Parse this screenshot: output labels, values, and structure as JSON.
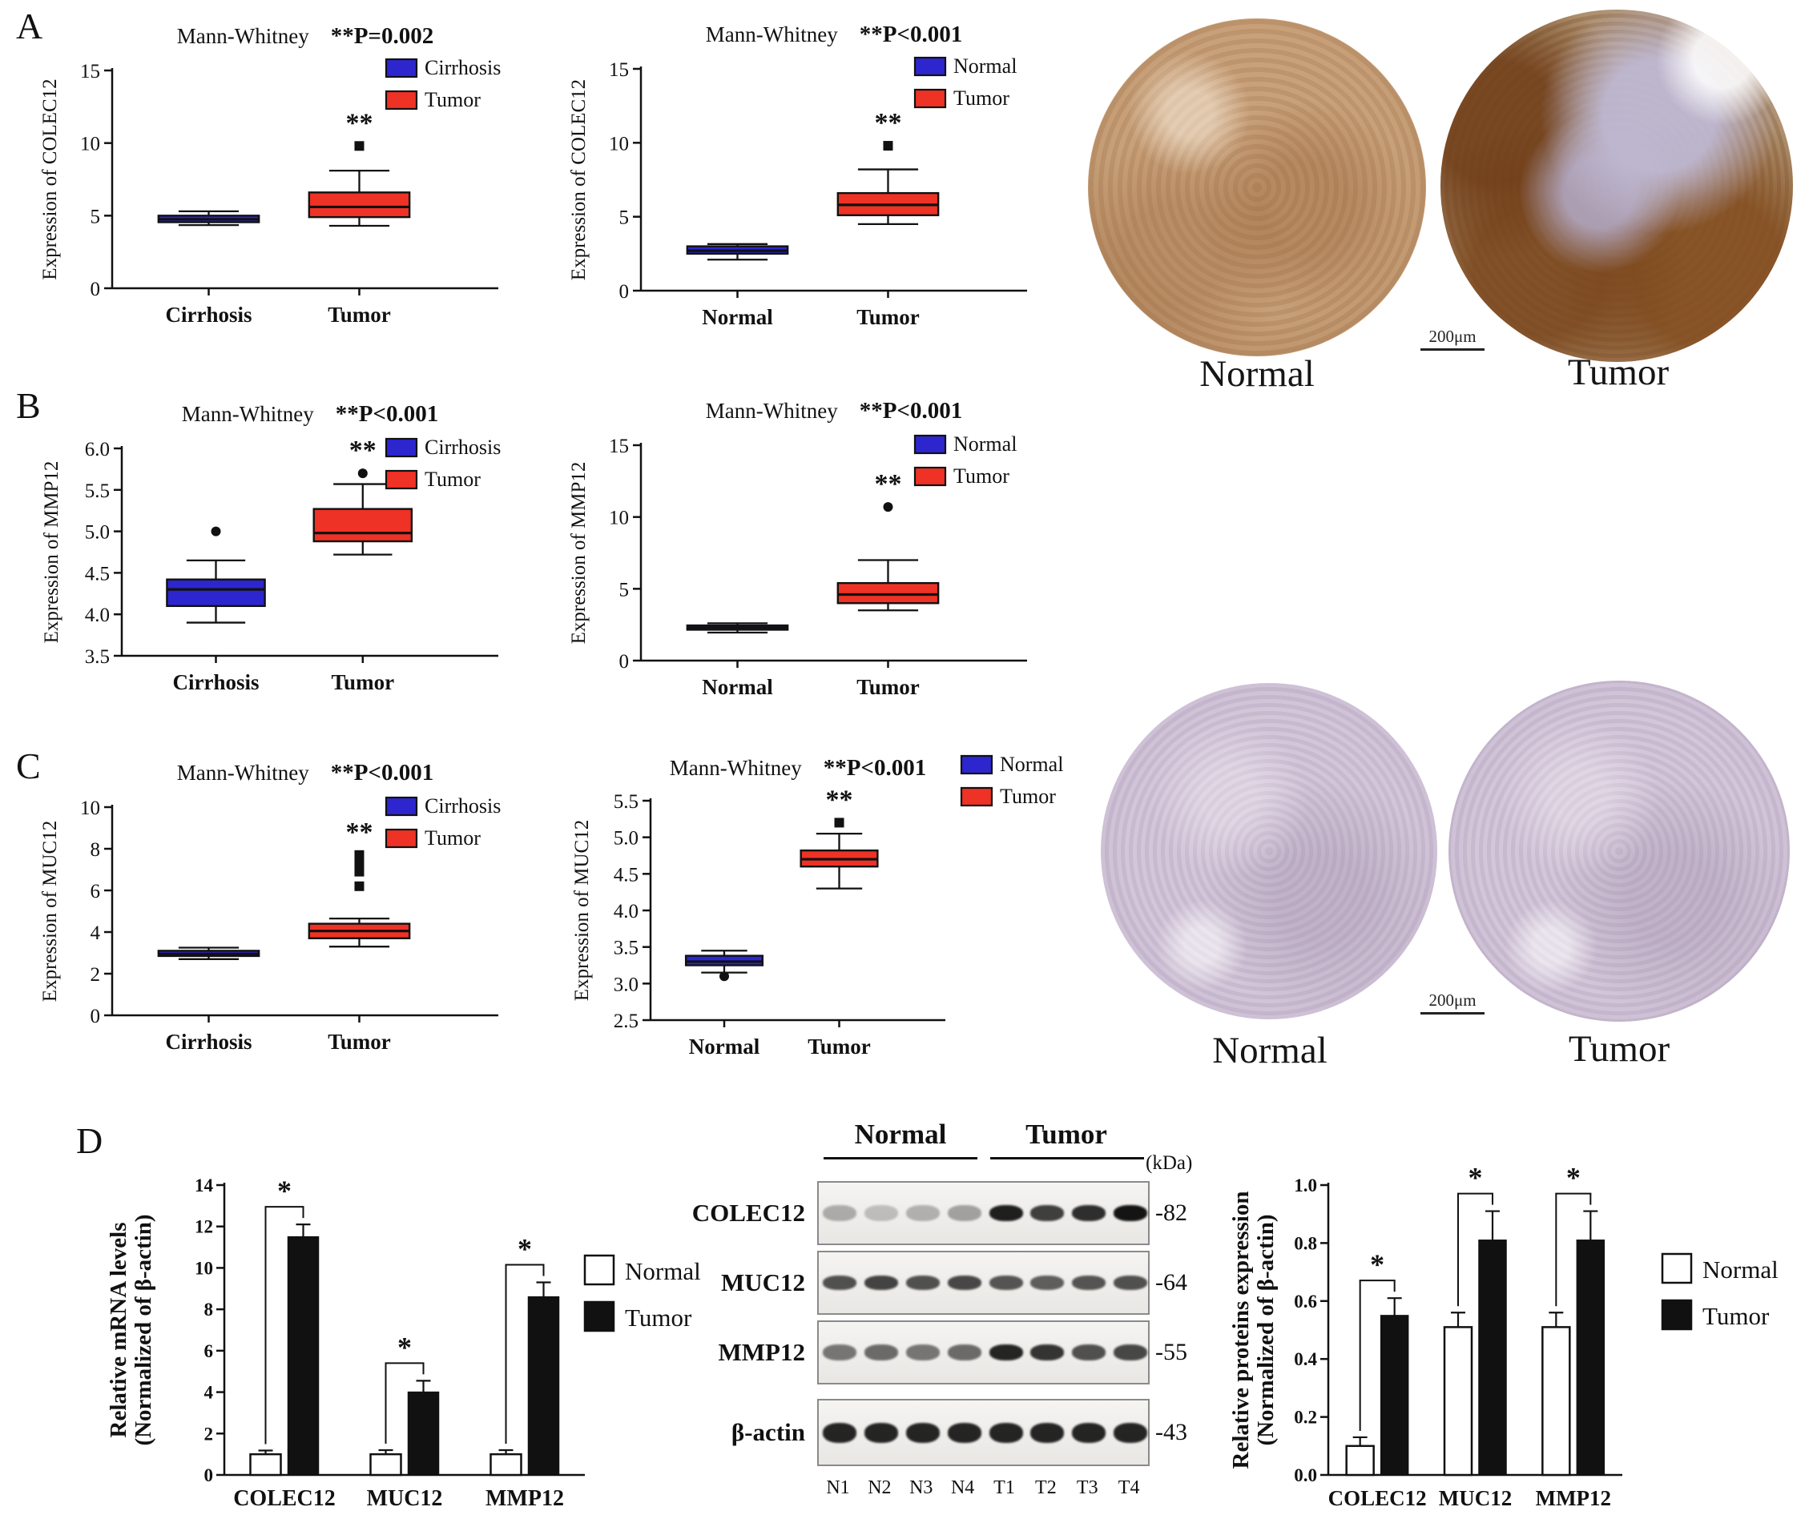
{
  "figure": {
    "panel_labels": {
      "A": "A",
      "B": "B",
      "C": "C",
      "D": "D"
    }
  },
  "ihc": {
    "panelA": {
      "normal_label": "Normal",
      "tumor_label": "Tumor",
      "scale_bar": "200μm"
    },
    "panelC": {
      "normal_label": "Normal",
      "tumor_label": "Tumor",
      "scale_bar": "200μm"
    }
  },
  "western_blot": {
    "group_headers": [
      "Normal",
      "Tumor"
    ],
    "kda_label": "(kDa)",
    "rows": [
      {
        "protein": "COLEC12",
        "kda": "-82",
        "intensities": [
          0.3,
          0.22,
          0.28,
          0.35,
          0.95,
          0.8,
          0.88,
          1.0
        ]
      },
      {
        "protein": "MUC12",
        "kda": "-64",
        "intensities": [
          0.72,
          0.78,
          0.72,
          0.76,
          0.7,
          0.66,
          0.7,
          0.72
        ]
      },
      {
        "protein": "MMP12",
        "kda": "-55",
        "intensities": [
          0.55,
          0.6,
          0.55,
          0.6,
          0.92,
          0.85,
          0.72,
          0.76
        ]
      },
      {
        "protein": "β-actin",
        "kda": "-43",
        "intensities": [
          0.92,
          0.92,
          0.92,
          0.92,
          0.92,
          0.92,
          0.92,
          0.92
        ]
      }
    ],
    "lanes": [
      "N1",
      "N2",
      "N3",
      "N4",
      "T1",
      "T2",
      "T3",
      "T4"
    ]
  },
  "chart_data": [
    {
      "id": "A1",
      "type": "box",
      "title": "Mann-Whitney",
      "p_label": "**P=0.002",
      "ylabel": "Expression of COLEC12",
      "ylim": [
        0,
        15
      ],
      "yticks": [
        0,
        5,
        10,
        15
      ],
      "ytick_labels": [
        "0",
        "5",
        "10",
        "15"
      ],
      "categories": [
        "Cirrhosis",
        "Tumor"
      ],
      "outlier_shape": "square",
      "boxes": [
        {
          "category": "Cirrhosis",
          "color": "#2d26cf",
          "whislo": 4.35,
          "q1": 4.55,
          "med": 4.75,
          "q3": 5.0,
          "whishi": 5.3,
          "outliers": []
        },
        {
          "category": "Tumor",
          "color": "#ee3225",
          "whislo": 4.3,
          "q1": 4.9,
          "med": 5.6,
          "q3": 6.6,
          "whishi": 8.1,
          "outliers": [
            9.8
          ],
          "sig": "**"
        }
      ],
      "legend": [
        {
          "label": "Cirrhosis",
          "color": "#2d26cf"
        },
        {
          "label": "Tumor",
          "color": "#ee3225"
        }
      ]
    },
    {
      "id": "A2",
      "type": "box",
      "title": "Mann-Whitney",
      "p_label": "**P<0.001",
      "ylabel": "Expression of COLEC12",
      "ylim": [
        0,
        15
      ],
      "yticks": [
        0,
        5,
        10,
        15
      ],
      "ytick_labels": [
        "0",
        "5",
        "10",
        "15"
      ],
      "categories": [
        "Normal",
        "Tumor"
      ],
      "outlier_shape": "square",
      "boxes": [
        {
          "category": "Normal",
          "color": "#2d26cf",
          "whislo": 2.1,
          "q1": 2.5,
          "med": 2.7,
          "q3": 3.0,
          "whishi": 3.15,
          "outliers": []
        },
        {
          "category": "Tumor",
          "color": "#ee3225",
          "whislo": 4.5,
          "q1": 5.1,
          "med": 5.8,
          "q3": 6.6,
          "whishi": 8.2,
          "outliers": [
            9.8
          ],
          "sig": "**"
        }
      ],
      "legend": [
        {
          "label": "Normal",
          "color": "#2d26cf"
        },
        {
          "label": "Tumor",
          "color": "#ee3225"
        }
      ]
    },
    {
      "id": "B1",
      "type": "box",
      "title": "Mann-Whitney",
      "p_label": "**P<0.001",
      "ylabel": "Expression of MMP12",
      "ylim": [
        3.5,
        6.0
      ],
      "yticks": [
        3.5,
        4.0,
        4.5,
        5.0,
        5.5,
        6.0
      ],
      "ytick_labels": [
        "3.5",
        "4.0",
        "4.5",
        "5.0",
        "5.5",
        "6.0"
      ],
      "categories": [
        "Cirrhosis",
        "Tumor"
      ],
      "outlier_shape": "circle",
      "boxes": [
        {
          "category": "Cirrhosis",
          "color": "#2d26cf",
          "whislo": 3.9,
          "q1": 4.1,
          "med": 4.3,
          "q3": 4.42,
          "whishi": 4.65,
          "outliers": [
            5.0
          ]
        },
        {
          "category": "Tumor",
          "color": "#ee3225",
          "whislo": 4.72,
          "q1": 4.88,
          "med": 4.98,
          "q3": 5.27,
          "whishi": 5.57,
          "outliers": [
            5.7
          ],
          "sig": "**"
        }
      ],
      "legend": [
        {
          "label": "Cirrhosis",
          "color": "#2d26cf"
        },
        {
          "label": "Tumor",
          "color": "#ee3225"
        }
      ]
    },
    {
      "id": "B2",
      "type": "box",
      "title": "Mann-Whitney",
      "p_label": "**P<0.001",
      "ylabel": "Expression of MMP12",
      "ylim": [
        0,
        15
      ],
      "yticks": [
        0,
        5,
        10,
        15
      ],
      "ytick_labels": [
        "0",
        "5",
        "10",
        "15"
      ],
      "categories": [
        "Normal",
        "Tumor"
      ],
      "outlier_shape": "circle",
      "boxes": [
        {
          "category": "Normal",
          "color": "#2d26cf",
          "whislo": 1.95,
          "q1": 2.15,
          "med": 2.3,
          "q3": 2.45,
          "whishi": 2.6,
          "outliers": []
        },
        {
          "category": "Tumor",
          "color": "#ee3225",
          "whislo": 3.5,
          "q1": 4.0,
          "med": 4.6,
          "q3": 5.4,
          "whishi": 7.0,
          "outliers": [
            10.7
          ],
          "sig": "**"
        }
      ],
      "legend": [
        {
          "label": "Normal",
          "color": "#2d26cf"
        },
        {
          "label": "Tumor",
          "color": "#ee3225"
        }
      ]
    },
    {
      "id": "C1",
      "type": "box",
      "title": "Mann-Whitney",
      "p_label": "**P<0.001",
      "ylabel": "Expression of MUC12",
      "ylim": [
        0,
        10
      ],
      "yticks": [
        0,
        2,
        4,
        6,
        8,
        10
      ],
      "ytick_labels": [
        "0",
        "2",
        "4",
        "6",
        "8",
        "10"
      ],
      "categories": [
        "Cirrhosis",
        "Tumor"
      ],
      "outlier_shape": "square",
      "boxes": [
        {
          "category": "Cirrhosis",
          "color": "#2d26cf",
          "whislo": 2.7,
          "q1": 2.85,
          "med": 2.95,
          "q3": 3.1,
          "whishi": 3.25,
          "outliers": []
        },
        {
          "category": "Tumor",
          "color": "#ee3225",
          "whislo": 3.3,
          "q1": 3.7,
          "med": 4.05,
          "q3": 4.4,
          "whishi": 4.65,
          "outliers": [
            6.2,
            6.9,
            7.3,
            7.7
          ],
          "sig": "**"
        }
      ],
      "legend": [
        {
          "label": "Cirrhosis",
          "color": "#2d26cf"
        },
        {
          "label": "Tumor",
          "color": "#ee3225"
        }
      ]
    },
    {
      "id": "C2",
      "type": "box",
      "title": "Mann-Whitney",
      "p_label": "**P<0.001",
      "ylabel": "Expression of MUC12",
      "ylim": [
        2.5,
        5.5
      ],
      "yticks": [
        2.5,
        3.0,
        3.5,
        4.0,
        4.5,
        5.0,
        5.5
      ],
      "ytick_labels": [
        "2.5",
        "3.0",
        "3.5",
        "4.0",
        "4.5",
        "5.0",
        "5.5"
      ],
      "categories": [
        "Normal",
        "Tumor"
      ],
      "outlier_shape": "square",
      "boxes": [
        {
          "category": "Normal",
          "color": "#2d26cf",
          "whislo": 3.15,
          "q1": 3.25,
          "med": 3.3,
          "q3": 3.38,
          "whishi": 3.45,
          "outliers": [
            3.1
          ],
          "outlier_shape": "circle"
        },
        {
          "category": "Tumor",
          "color": "#ee3225",
          "whislo": 4.3,
          "q1": 4.6,
          "med": 4.7,
          "q3": 4.82,
          "whishi": 5.05,
          "outliers": [
            5.2
          ],
          "outlier_shape": "square",
          "sig": "**"
        }
      ],
      "legend": [
        {
          "label": "Normal",
          "color": "#2d26cf"
        },
        {
          "label": "Tumor",
          "color": "#ee3225"
        }
      ]
    },
    {
      "id": "D1",
      "type": "bar",
      "ylabel_lines": [
        "Relative mRNA levels",
        "(Normalized of β-actin)"
      ],
      "ylim": [
        0,
        14
      ],
      "yticks": [
        0,
        2,
        4,
        6,
        8,
        10,
        12,
        14
      ],
      "ytick_labels": [
        "0",
        "2",
        "4",
        "6",
        "8",
        "10",
        "12",
        "14"
      ],
      "categories": [
        "COLEC12",
        "MUC12",
        "MMP12"
      ],
      "series": [
        {
          "name": "Normal",
          "color": "#ffffff",
          "values": [
            1.0,
            1.0,
            1.0
          ],
          "errors": [
            0.18,
            0.2,
            0.2
          ]
        },
        {
          "name": "Tumor",
          "color": "#111111",
          "values": [
            11.5,
            4.0,
            8.6
          ],
          "errors": [
            0.6,
            0.55,
            0.7
          ]
        }
      ],
      "sig": [
        "*",
        "*",
        "*"
      ],
      "legend": [
        {
          "label": "Normal",
          "color": "#ffffff"
        },
        {
          "label": "Tumor",
          "color": "#111111"
        }
      ]
    },
    {
      "id": "D2",
      "type": "bar",
      "ylabel_lines": [
        "Relative proteins expression",
        "(Normalized of β-actin)"
      ],
      "ylim": [
        0,
        1.0
      ],
      "yticks": [
        0,
        0.2,
        0.4,
        0.6,
        0.8,
        1.0
      ],
      "ytick_labels": [
        "0.0",
        "0.2",
        "0.4",
        "0.6",
        "0.8",
        "1.0"
      ],
      "categories": [
        "COLEC12",
        "MUC12",
        "MMP12"
      ],
      "series": [
        {
          "name": "Normal",
          "color": "#ffffff",
          "values": [
            0.1,
            0.51,
            0.51
          ],
          "errors": [
            0.03,
            0.05,
            0.05
          ]
        },
        {
          "name": "Tumor",
          "color": "#111111",
          "values": [
            0.55,
            0.81,
            0.81
          ],
          "errors": [
            0.06,
            0.1,
            0.1
          ]
        }
      ],
      "sig": [
        "*",
        "*",
        "*"
      ],
      "legend": [
        {
          "label": "Normal",
          "color": "#ffffff"
        },
        {
          "label": "Tumor",
          "color": "#111111"
        }
      ]
    }
  ]
}
